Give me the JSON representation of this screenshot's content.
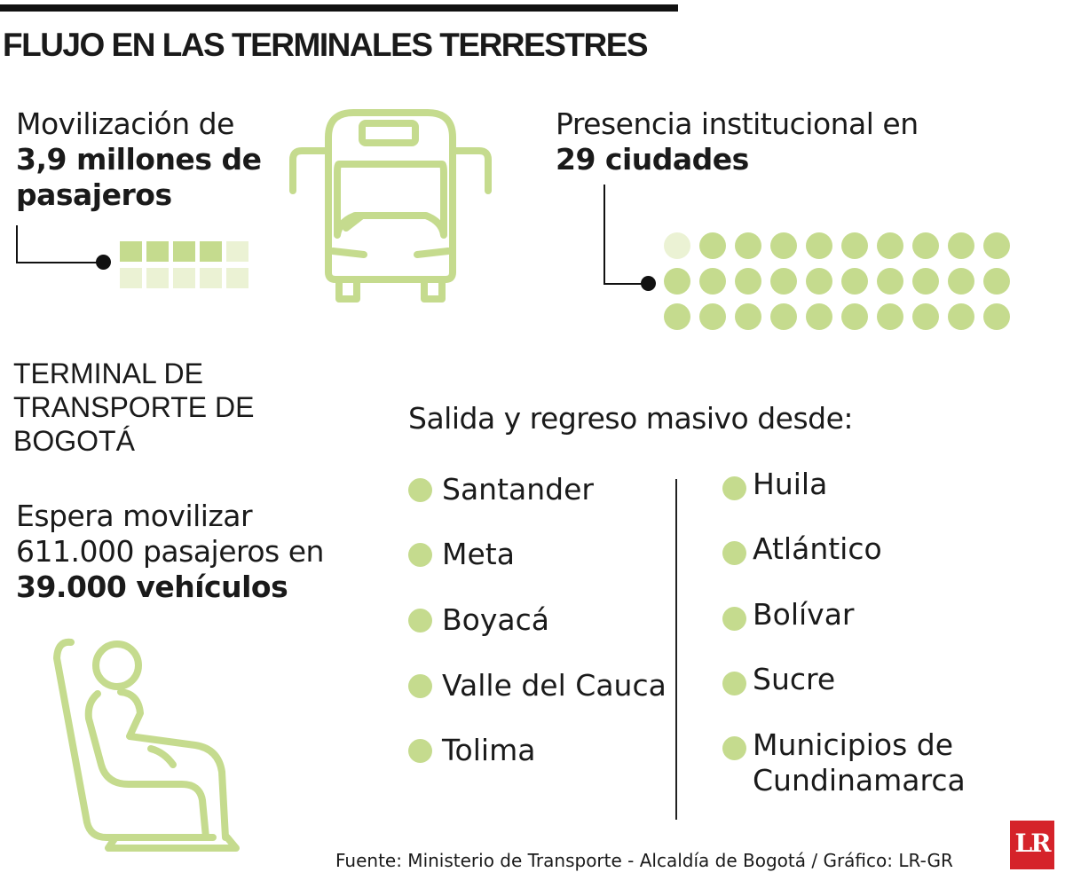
{
  "title": "FLUJO EN LAS TERMINALES TERRESTRES",
  "stat1": {
    "line1": "Movilización de",
    "line2": "3,9 millones de",
    "line3": "pasajeros"
  },
  "stat2": {
    "line1": "Presencia institucional en",
    "line2": "29 ciudades",
    "cities_highlighted": 29,
    "cities_total": 30
  },
  "terminal": {
    "line1": "TERMINAL DE",
    "line2": "TRANSPORTE DE",
    "line3": "BOGOTÁ"
  },
  "expect": {
    "line1": "Espera movilizar",
    "line2": "611.000 pasajeros en",
    "line3": "39.000 vehículos"
  },
  "list_heading": "Salida y regreso masivo desde:",
  "list_left": [
    "Santander",
    "Meta",
    "Boyacá",
    "Valle del Cauca",
    "Tolima"
  ],
  "list_right": [
    "Huila",
    "Atlántico",
    "Bolívar",
    "Sucre",
    "Municipios de Cundinamarca"
  ],
  "list_right_last": {
    "line1": "Municipios de",
    "line2": "Cundinamarca"
  },
  "source": "Fuente: Ministerio de Transporte - Alcaldía de Bogotá / Gráfico: LR-GR",
  "logo": "LR",
  "colors": {
    "accent": "#c5db8e",
    "accent_pale": "#ebf2d4",
    "text": "#1a1a1a",
    "logo": "#d5232a"
  }
}
